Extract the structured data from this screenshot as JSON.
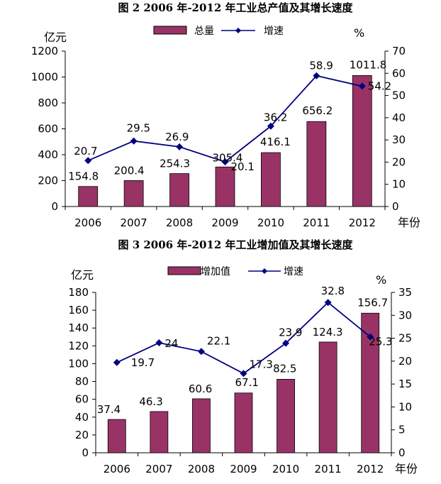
{
  "chart_data": [
    {
      "type": "bar",
      "title": "图 2 2006 年-2012 年工业总产值及其增长速度",
      "categories": [
        "2006",
        "2007",
        "2008",
        "2009",
        "2010",
        "2011",
        "2012"
      ],
      "series": [
        {
          "name": "总量",
          "type": "bar",
          "axis": "left",
          "values": [
            154.8,
            200.4,
            254.3,
            305.4,
            416.1,
            656.2,
            1011.8
          ]
        },
        {
          "name": "增速",
          "type": "line",
          "axis": "right",
          "values": [
            20.7,
            29.5,
            26.9,
            20.1,
            36.2,
            58.9,
            54.2
          ]
        }
      ],
      "ylabel": "亿元",
      "y2label": "%",
      "xlabel": "年份",
      "ylim": [
        0,
        1200
      ],
      "y_ticks": [
        "0",
        "200",
        "400",
        "600",
        "800",
        "1000",
        "1200"
      ],
      "y2lim": [
        0,
        70
      ],
      "y2_ticks": [
        "0",
        "10",
        "20",
        "30",
        "40",
        "50",
        "60",
        "70"
      ],
      "legend_position": "top",
      "bar_color": "#993366",
      "line_color": "#000080"
    },
    {
      "type": "bar",
      "title": "图 3 2006 年-2012 年工业增加值及其增长速度",
      "categories": [
        "2006",
        "2007",
        "2008",
        "2009",
        "2010",
        "2011",
        "2012"
      ],
      "series": [
        {
          "name": "增加值",
          "type": "bar",
          "axis": "left",
          "values": [
            37.4,
            46.3,
            60.6,
            67.1,
            82.5,
            124.3,
            156.7
          ]
        },
        {
          "name": "增速",
          "type": "line",
          "axis": "right",
          "values": [
            19.7,
            24.0,
            22.1,
            17.3,
            23.9,
            32.8,
            25.3
          ]
        }
      ],
      "ylabel": "亿元",
      "y2label": "%",
      "xlabel": "年份",
      "ylim": [
        0,
        180
      ],
      "y_ticks": [
        "0",
        "20",
        "40",
        "60",
        "80",
        "100",
        "120",
        "140",
        "160",
        "180"
      ],
      "y2lim": [
        0,
        35
      ],
      "y2_ticks": [
        "0",
        "5",
        "10",
        "15",
        "20",
        "25",
        "30",
        "35"
      ],
      "legend_position": "top",
      "bar_color": "#993366",
      "line_color": "#000080"
    }
  ]
}
